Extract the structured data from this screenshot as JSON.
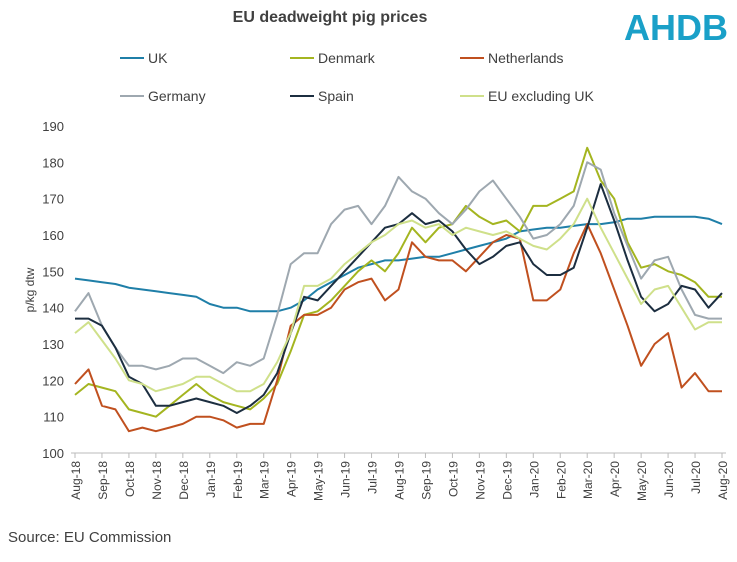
{
  "logo": "AHDB",
  "chart_data": {
    "type": "line",
    "title": "EU deadweight pig prices",
    "y_label": "p/kg dtw",
    "source": "Source: EU Commission",
    "categories": [
      "Aug-18",
      null,
      "Sep-18",
      null,
      "Oct-18",
      null,
      "Nov-18",
      null,
      "Dec-18",
      null,
      "Jan-19",
      null,
      "Feb-19",
      null,
      "Mar-19",
      null,
      "Apr-19",
      null,
      "May-19",
      null,
      "Jun-19",
      null,
      "Jul-19",
      null,
      "Aug-19",
      null,
      "Sep-19",
      null,
      "Oct-19",
      null,
      "Nov-19",
      null,
      "Dec-19",
      null,
      "Jan-20",
      null,
      "Feb-20",
      null,
      "Mar-20",
      null,
      "Apr-20",
      null,
      "May-20",
      null,
      "Jun-20",
      null,
      "Jul-20",
      null,
      "Aug-20"
    ],
    "ylim": [
      100,
      190
    ],
    "yticks": [
      100,
      110,
      120,
      130,
      140,
      150,
      160,
      170,
      180,
      190
    ],
    "grid": false,
    "series": [
      {
        "name": "UK",
        "color": "#1f7fa8",
        "values": [
          148,
          147.5,
          147,
          146.5,
          145.5,
          145,
          144.5,
          144,
          143.5,
          143,
          141,
          140,
          140,
          139,
          139,
          139,
          140,
          142,
          145,
          147,
          149,
          151,
          152,
          153,
          153,
          153.5,
          154,
          154,
          155,
          156,
          157,
          158,
          159,
          161,
          161.5,
          162,
          162,
          162.5,
          163,
          163,
          163.5,
          164.5,
          164.5,
          165,
          165,
          165,
          165,
          164.5,
          163
        ]
      },
      {
        "name": "Denmark",
        "color": "#a4b520",
        "values": [
          116,
          119,
          118,
          117,
          112,
          111,
          110,
          113,
          116,
          119,
          116,
          114,
          113,
          112,
          115,
          119,
          128,
          138,
          139,
          142,
          146,
          150,
          153,
          150,
          155,
          162,
          158,
          162,
          163,
          168,
          165,
          163,
          164,
          161,
          168,
          168,
          170,
          172,
          184,
          175,
          170,
          158,
          151,
          152,
          150,
          149,
          147,
          143,
          143
        ]
      },
      {
        "name": "Netherlands",
        "color": "#c0501f",
        "values": [
          119,
          123,
          113,
          112,
          106,
          107,
          106,
          107,
          108,
          110,
          110,
          109,
          107,
          108,
          108,
          120,
          135,
          138,
          138,
          140,
          145,
          147,
          148,
          142,
          145,
          158,
          154,
          153,
          153,
          150,
          154,
          158,
          160,
          159,
          142,
          142,
          145,
          155,
          163,
          155,
          145,
          135,
          124,
          130,
          133,
          118,
          122,
          117,
          117
        ]
      },
      {
        "name": "Germany",
        "color": "#9ea8b0",
        "values": [
          139,
          144,
          135,
          129,
          124,
          124,
          123,
          124,
          126,
          126,
          124,
          122,
          125,
          124,
          126,
          138,
          152,
          155,
          155,
          163,
          167,
          168,
          163,
          168,
          176,
          172,
          170,
          166,
          163,
          167,
          172,
          175,
          170,
          165,
          159,
          160,
          163,
          168,
          180,
          178,
          166,
          157,
          148,
          153,
          154,
          145,
          138,
          137,
          137
        ]
      },
      {
        "name": "Spain",
        "color": "#1c2e40",
        "values": [
          137,
          137,
          135,
          129,
          121,
          119,
          113,
          113,
          114,
          115,
          114,
          113,
          111,
          113,
          116,
          122,
          133,
          143,
          142,
          146,
          150,
          154,
          158,
          162,
          163,
          166,
          163,
          164,
          161,
          156,
          152,
          154,
          157,
          158,
          152,
          149,
          149,
          151,
          162,
          174,
          164,
          153,
          143,
          139,
          141,
          146,
          145,
          140,
          144
        ]
      },
      {
        "name": "EU excluding UK",
        "color": "#cfe08a",
        "values": [
          133,
          136,
          131,
          126,
          120,
          119,
          117,
          118,
          119,
          121,
          121,
          119,
          117,
          117,
          119,
          125,
          133,
          146,
          146,
          148,
          152,
          155,
          158,
          160,
          163,
          164,
          162,
          163,
          160,
          162,
          161,
          160,
          161,
          159,
          157,
          156,
          159,
          163,
          170,
          162,
          155,
          148,
          141,
          145,
          146,
          140,
          134,
          136,
          136
        ]
      }
    ]
  }
}
